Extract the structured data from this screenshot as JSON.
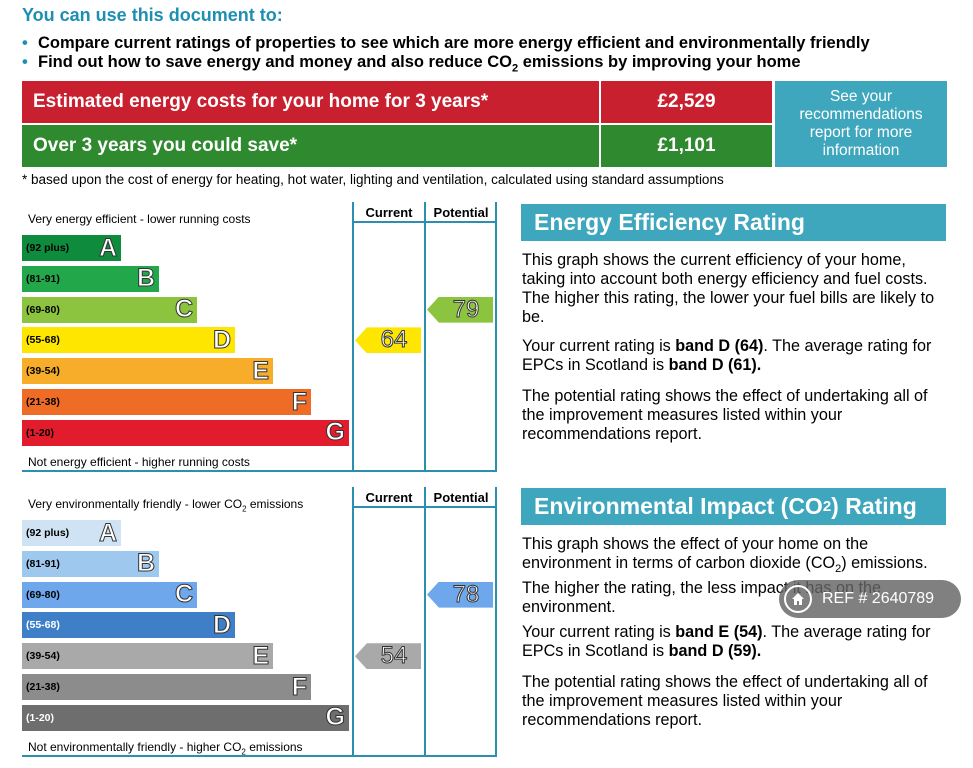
{
  "intro": {
    "title": "You can use this document to:",
    "bullets": [
      {
        "pre": "Compare current ratings of properties to see which are more energy efficient and environmentally friendly",
        "sub": "",
        "post": ""
      },
      {
        "pre": "Find out how to save energy and money and also reduce CO",
        "sub": "2",
        "post": " emissions by improving your home"
      }
    ],
    "bullet_symbol": "•"
  },
  "costs": {
    "estimated_label": "Estimated energy costs for your home for 3 years*",
    "estimated_value": "£2,529",
    "save_label": "Over 3 years you could save*",
    "save_value": "£1,101",
    "see_recommendations": "See your\nrecommendations\nreport for more\ninformation",
    "footnote": "* based upon the cost of energy for heating, hot water, lighting and ventilation, calculated using standard assumptions",
    "colors": {
      "estimated": "#c8202f",
      "save": "#2f8a2f",
      "info": "#3ea6bd"
    }
  },
  "energy_chart": {
    "top_label": "Very energy efficient - lower running costs",
    "bottom_label": "Not energy efficient - higher running costs",
    "current_header": "Current",
    "potential_header": "Potential",
    "bands": [
      {
        "range": "(92 plus)",
        "letter": "A",
        "color": "#0f8b3e"
      },
      {
        "range": "(81-91)",
        "letter": "B",
        "color": "#22a84b"
      },
      {
        "range": "(69-80)",
        "letter": "C",
        "color": "#8cc43f"
      },
      {
        "range": "(55-68)",
        "letter": "D",
        "color": "#ffe600"
      },
      {
        "range": "(39-54)",
        "letter": "E",
        "color": "#f7ad2a"
      },
      {
        "range": "(21-38)",
        "letter": "F",
        "color": "#ef6c26"
      },
      {
        "range": "(1-20)",
        "letter": "G",
        "color": "#e21c2c"
      }
    ],
    "current": {
      "value": "64",
      "band": "D",
      "color": "#ffe600"
    },
    "potential": {
      "value": "79",
      "band": "C",
      "color": "#8cc43f"
    }
  },
  "env_chart": {
    "top_label_pre": "Very environmentally friendly - lower CO",
    "top_label_sub": "2",
    "top_label_post": " emissions",
    "bottom_label_pre": "Not environmentally friendly - higher CO",
    "bottom_label_sub": "2",
    "bottom_label_post": " emissions",
    "current_header": "Current",
    "potential_header": "Potential",
    "bands": [
      {
        "range": "(92 plus)",
        "letter": "A",
        "color": "#cfe3f5"
      },
      {
        "range": "(81-91)",
        "letter": "B",
        "color": "#9fc8ef"
      },
      {
        "range": "(69-80)",
        "letter": "C",
        "color": "#6ea7ec"
      },
      {
        "range": "(55-68)",
        "letter": "D",
        "color": "#3f7fc7"
      },
      {
        "range": "(39-54)",
        "letter": "E",
        "color": "#a9a9a9"
      },
      {
        "range": "(21-38)",
        "letter": "F",
        "color": "#8c8c8c"
      },
      {
        "range": "(1-20)",
        "letter": "G",
        "color": "#6e6e6e"
      }
    ],
    "current": {
      "value": "54",
      "band": "E",
      "color": "#a9a9a9"
    },
    "potential": {
      "value": "78",
      "band": "C",
      "color": "#6ea7ec"
    }
  },
  "energy_panel": {
    "heading": "Energy Efficiency Rating",
    "p1": "This graph shows the current efficiency of your home, taking into account both energy efficiency and fuel costs. The higher this rating, the lower your fuel bills are likely to be.",
    "p2_a": "Your current rating is ",
    "p2_b": "band D (64)",
    "p2_c": ". The average rating for EPCs in Scotland is ",
    "p2_d": "band D (61).",
    "p3": "The potential rating shows the effect of undertaking all of the improvement measures listed within your recommendations report."
  },
  "env_panel": {
    "heading_pre": "Environmental Impact (CO",
    "heading_sub": "2",
    "heading_post": ") Rating",
    "p1_a": "This graph shows the effect of your home on the environment in terms of carbon dioxide (CO",
    "p1_sub": "2",
    "p1_b": ") emissions. The higher the rating, the less impact it has on the environment.",
    "p2_a": "Your current rating is ",
    "p2_b": "band E (54)",
    "p2_c": ". The average rating for EPCs in Scotland is ",
    "p2_d": "band D (59).",
    "p3": "The potential rating shows the effect of undertaking all of the improvement measures listed within your recommendations report."
  },
  "watermark": {
    "text": "REF # 2640789",
    "icon": "home-icon"
  }
}
